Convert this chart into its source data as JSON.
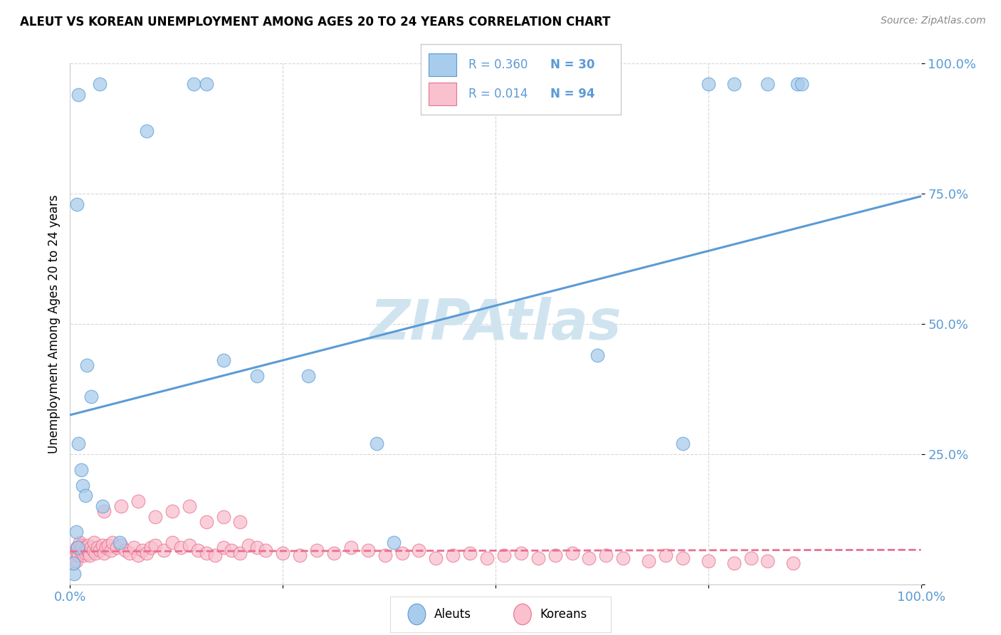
{
  "title": "ALEUT VS KOREAN UNEMPLOYMENT AMONG AGES 20 TO 24 YEARS CORRELATION CHART",
  "source": "Source: ZipAtlas.com",
  "ylabel": "Unemployment Among Ages 20 to 24 years",
  "xlim": [
    0,
    1
  ],
  "ylim": [
    0,
    1
  ],
  "aleut_color": "#a8ccec",
  "aleut_edge_color": "#5b9bd5",
  "korean_color": "#f9c0ce",
  "korean_edge_color": "#e87090",
  "aleut_line_color": "#5b9bd5",
  "korean_line_color": "#e87090",
  "watermark_color": "#d0e4f0",
  "tick_color": "#5b9bd5",
  "aleut_x": [
    0.01,
    0.035,
    0.09,
    0.145,
    0.16,
    0.008,
    0.01,
    0.013,
    0.015,
    0.02,
    0.025,
    0.18,
    0.22,
    0.28,
    0.36,
    0.38,
    0.62,
    0.72,
    0.75,
    0.78,
    0.82,
    0.855,
    0.86,
    0.007,
    0.018,
    0.038,
    0.058,
    0.009,
    0.005,
    0.004
  ],
  "aleut_y": [
    0.94,
    0.96,
    0.87,
    0.96,
    0.96,
    0.73,
    0.27,
    0.22,
    0.19,
    0.42,
    0.36,
    0.43,
    0.4,
    0.4,
    0.27,
    0.08,
    0.44,
    0.27,
    0.96,
    0.96,
    0.96,
    0.96,
    0.96,
    0.1,
    0.17,
    0.15,
    0.08,
    0.07,
    0.02,
    0.04
  ],
  "korean_x": [
    0.002,
    0.004,
    0.005,
    0.006,
    0.007,
    0.008,
    0.009,
    0.01,
    0.011,
    0.012,
    0.013,
    0.014,
    0.015,
    0.016,
    0.017,
    0.018,
    0.019,
    0.02,
    0.021,
    0.022,
    0.023,
    0.025,
    0.027,
    0.028,
    0.03,
    0.032,
    0.035,
    0.038,
    0.04,
    0.042,
    0.045,
    0.048,
    0.05,
    0.055,
    0.06,
    0.065,
    0.07,
    0.075,
    0.08,
    0.085,
    0.09,
    0.095,
    0.1,
    0.11,
    0.12,
    0.13,
    0.14,
    0.15,
    0.16,
    0.17,
    0.18,
    0.19,
    0.2,
    0.21,
    0.22,
    0.23,
    0.25,
    0.27,
    0.29,
    0.31,
    0.33,
    0.35,
    0.37,
    0.39,
    0.41,
    0.43,
    0.45,
    0.47,
    0.49,
    0.51,
    0.53,
    0.55,
    0.57,
    0.59,
    0.61,
    0.63,
    0.65,
    0.68,
    0.7,
    0.72,
    0.75,
    0.78,
    0.8,
    0.82,
    0.85,
    0.04,
    0.06,
    0.08,
    0.1,
    0.12,
    0.14,
    0.16,
    0.18,
    0.2
  ],
  "korean_y": [
    0.05,
    0.04,
    0.06,
    0.055,
    0.045,
    0.07,
    0.06,
    0.055,
    0.08,
    0.065,
    0.075,
    0.06,
    0.07,
    0.055,
    0.065,
    0.06,
    0.07,
    0.065,
    0.075,
    0.06,
    0.055,
    0.07,
    0.065,
    0.08,
    0.06,
    0.07,
    0.065,
    0.075,
    0.06,
    0.07,
    0.075,
    0.065,
    0.08,
    0.07,
    0.075,
    0.065,
    0.06,
    0.07,
    0.055,
    0.065,
    0.06,
    0.07,
    0.075,
    0.065,
    0.08,
    0.07,
    0.075,
    0.065,
    0.06,
    0.055,
    0.07,
    0.065,
    0.06,
    0.075,
    0.07,
    0.065,
    0.06,
    0.055,
    0.065,
    0.06,
    0.07,
    0.065,
    0.055,
    0.06,
    0.065,
    0.05,
    0.055,
    0.06,
    0.05,
    0.055,
    0.06,
    0.05,
    0.055,
    0.06,
    0.05,
    0.055,
    0.05,
    0.045,
    0.055,
    0.05,
    0.045,
    0.04,
    0.05,
    0.045,
    0.04,
    0.14,
    0.15,
    0.16,
    0.13,
    0.14,
    0.15,
    0.12,
    0.13,
    0.12
  ],
  "aleut_slope": 0.42,
  "aleut_intercept": 0.325,
  "korean_slope": 0.003,
  "korean_intercept": 0.063
}
